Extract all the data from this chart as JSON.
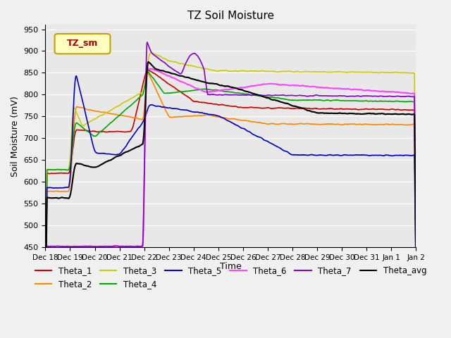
{
  "title": "TZ Soil Moisture",
  "xlabel": "Time",
  "ylabel": "Soil Moisture (mV)",
  "ylim": [
    450,
    960
  ],
  "yticks": [
    450,
    500,
    550,
    600,
    650,
    700,
    750,
    800,
    850,
    900,
    950
  ],
  "background_color": "#e8e8e8",
  "legend_label": "TZ_sm",
  "legend_box_facecolor": "#ffffc0",
  "legend_box_edgecolor": "#c8a000",
  "legend_text_color": "#aa0000",
  "colors": {
    "Theta_1": "#cc0000",
    "Theta_2": "#ff8800",
    "Theta_3": "#cccc00",
    "Theta_4": "#00aa00",
    "Theta_5": "#0000cc",
    "Theta_6": "#ff44ff",
    "Theta_7": "#8800cc",
    "Theta_avg": "#000000"
  },
  "x_labels": [
    "Dec 18",
    "Dec 19",
    "Dec 20",
    "Dec 21",
    "Dec 22",
    "Dec 23",
    "Dec 24",
    "Dec 25",
    "Dec 26",
    "Dec 27",
    "Dec 28",
    "Dec 29",
    "Dec 30",
    "Dec 31",
    "Jan 1",
    "Jan 2"
  ],
  "n_days": 16
}
